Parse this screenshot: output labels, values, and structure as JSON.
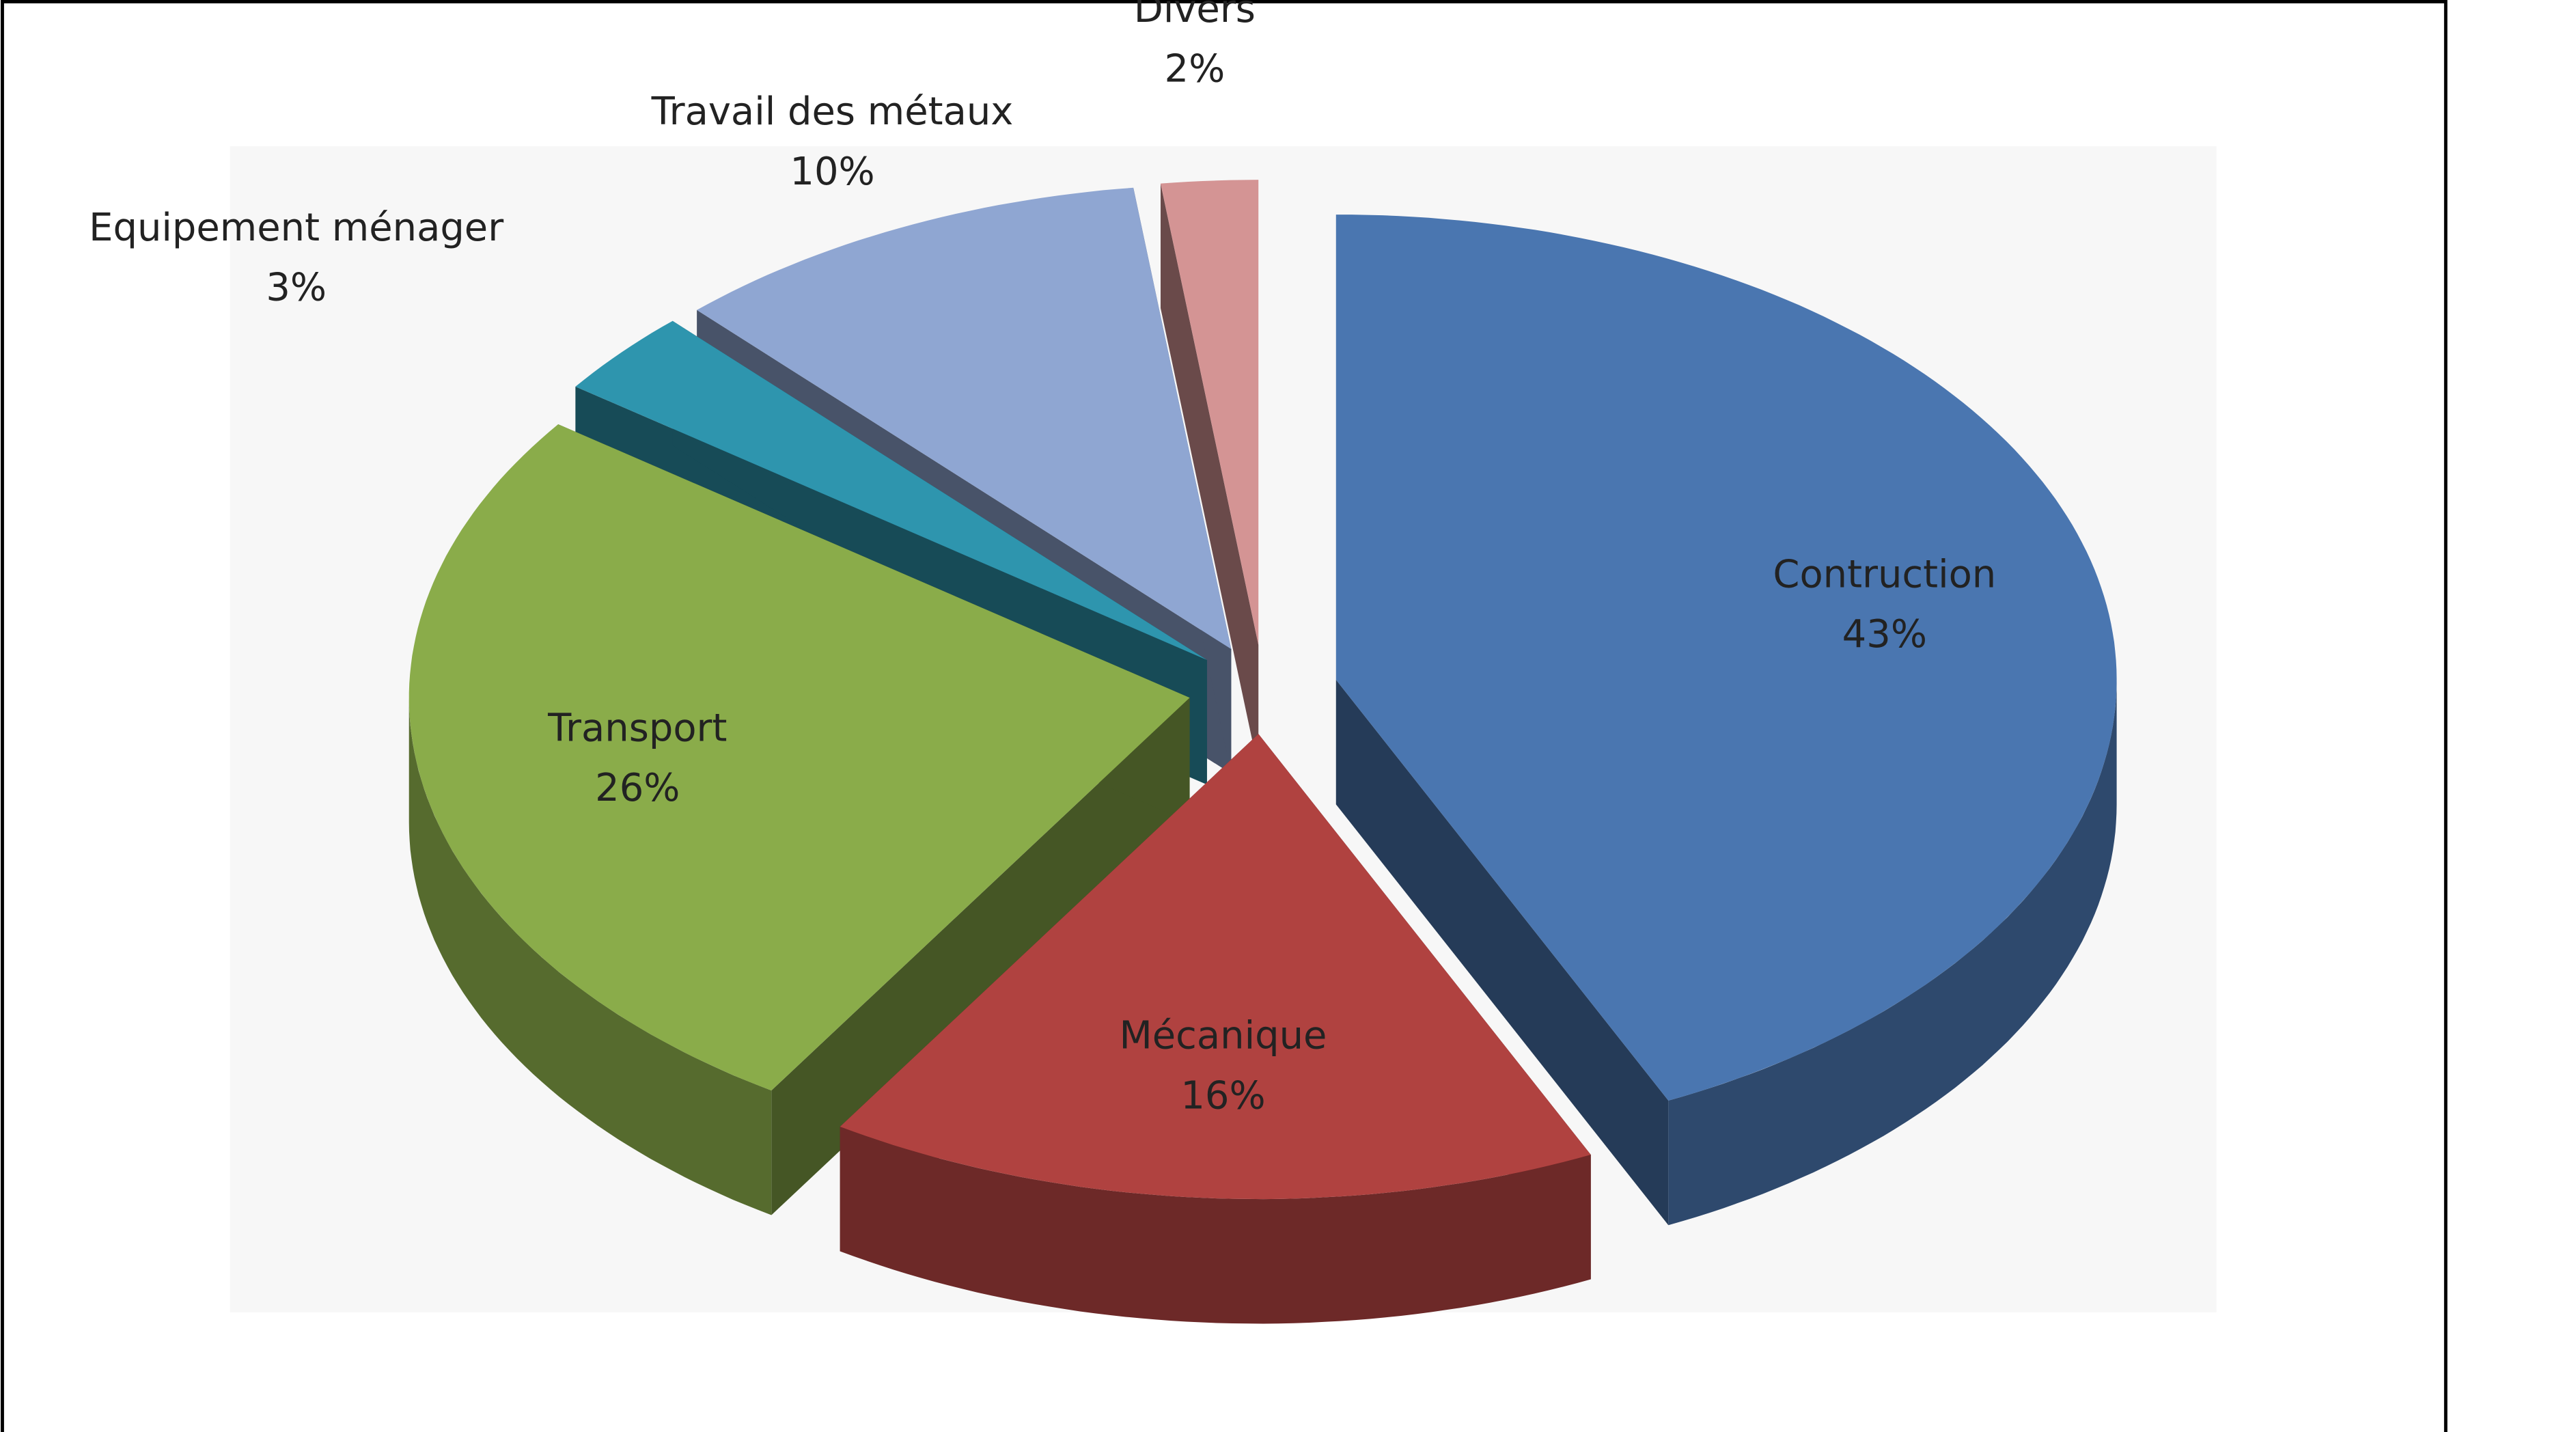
{
  "chart_data": {
    "type": "pie",
    "categories": [
      "Contruction",
      "Mécanique",
      "Transport",
      "Equipement ménager",
      "Travail des métaux",
      "Divers"
    ],
    "values": [
      43,
      16,
      26,
      3,
      10,
      2
    ],
    "value_labels": [
      "43%",
      "16%",
      "26%",
      "3%",
      "10%",
      "2%"
    ],
    "colors": [
      "#4a76b0",
      "#b04240",
      "#8aac4a",
      "#2e95ae",
      "#8fa6d2",
      "#d49494"
    ]
  }
}
